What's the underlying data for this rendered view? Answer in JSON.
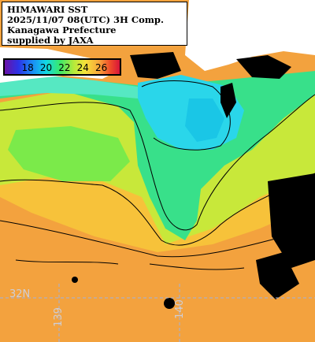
{
  "header": {
    "line1": "HIMAWARI SST",
    "line2": "2025/11/07 08(UTC) 3H Comp.",
    "line3": "Kanagawa Prefecture",
    "line4": "supplied by JAXA"
  },
  "scale": {
    "ticks": [
      "18",
      "20",
      "22",
      "24",
      "26"
    ],
    "colors": [
      "#6a12a6",
      "#2c33e8",
      "#1a8cf5",
      "#12d8e6",
      "#3be86a",
      "#b5ea3a",
      "#f6e23a",
      "#f8a63a",
      "#ef4a2a",
      "#d8143a"
    ]
  },
  "grid": {
    "lat_label": "32N",
    "lon_label_a": "139",
    "lon_label_b": "140"
  },
  "colors": {
    "land": "#ffffff",
    "cloud": "#000000",
    "cold_water": "#2ad6ea",
    "cool_water": "#38e08a",
    "mild_water": "#c8e83a",
    "warm_water": "#f3a23e"
  }
}
